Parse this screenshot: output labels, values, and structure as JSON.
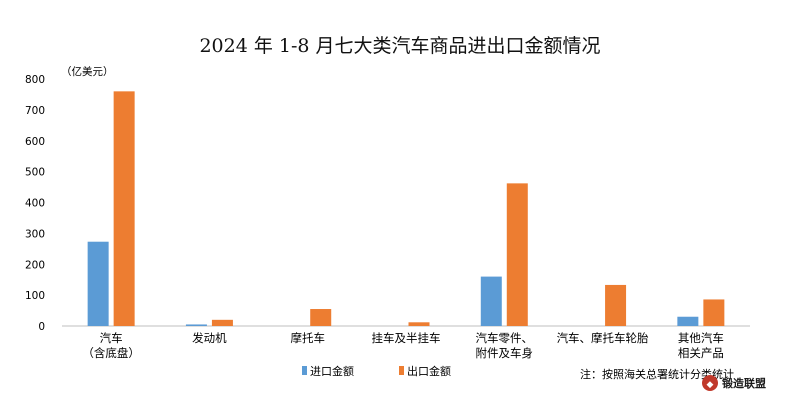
{
  "chart_data": {
    "type": "bar",
    "title": "2024 年 1-8 月七大类汽车商品进出口金额情况",
    "unit_label": "（亿美元）",
    "ylim": [
      0,
      800
    ],
    "yticks": [
      0,
      100,
      200,
      300,
      400,
      500,
      600,
      700,
      800
    ],
    "categories": [
      [
        "汽车",
        "（含底盘）"
      ],
      [
        "发动机"
      ],
      [
        "摩托车"
      ],
      [
        "挂车及半挂车"
      ],
      [
        "汽车零件、",
        "附件及车身"
      ],
      [
        "汽车、摩托车轮胎"
      ],
      [
        "其他汽车",
        "相关产品"
      ]
    ],
    "series": [
      {
        "name": "进口金额",
        "color": "#5B9BD5",
        "values": [
          273,
          5,
          0,
          0,
          160,
          0,
          30
        ]
      },
      {
        "name": "出口金额",
        "color": "#ED7D31",
        "values": [
          760,
          20,
          55,
          12,
          462,
          133,
          86
        ]
      }
    ],
    "legend_position": "bottom-left",
    "grid": false
  },
  "note": "注：按照海关总署统计分类统计",
  "logo": {
    "text": "锻造联盟",
    "color": "#C0392B"
  }
}
